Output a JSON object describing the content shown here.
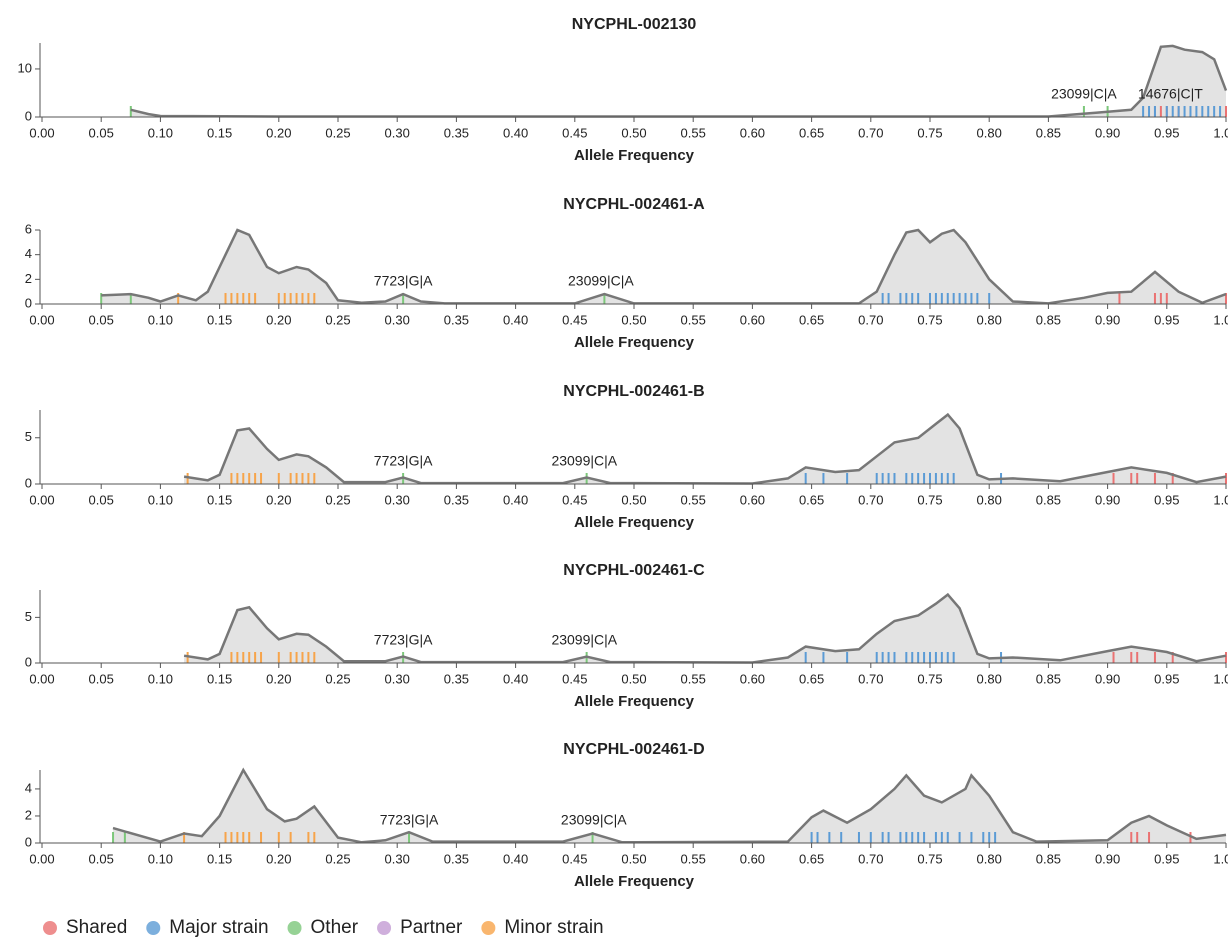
{
  "chart_data": [
    {
      "type": "density",
      "title": "NYCPHL-002130",
      "x_label": "Allele Frequency",
      "xlim": [
        0,
        1
      ],
      "ylim": [
        0,
        15.4
      ],
      "yticks": [
        0,
        10
      ],
      "xticks": [
        {
          "value": 0,
          "label": "0.00"
        },
        {
          "value": 0.05,
          "label": "0.05"
        },
        {
          "value": 0.1,
          "label": "0.10"
        },
        {
          "value": 0.15,
          "label": "0.15"
        },
        {
          "value": 0.2,
          "label": "0.20"
        },
        {
          "value": 0.25,
          "label": "0.25"
        },
        {
          "value": 0.3,
          "label": "0.30"
        },
        {
          "value": 0.35,
          "label": "0.35"
        },
        {
          "value": 0.4,
          "label": "0.40"
        },
        {
          "value": 0.45,
          "label": "0.45"
        },
        {
          "value": 0.5,
          "label": "0.50"
        },
        {
          "value": 0.55,
          "label": "0.55"
        },
        {
          "value": 0.6,
          "label": "0.60"
        },
        {
          "value": 0.65,
          "label": "0.65"
        },
        {
          "value": 0.7,
          "label": "0.70"
        },
        {
          "value": 0.75,
          "label": "0.75"
        },
        {
          "value": 0.8,
          "label": "0.80"
        },
        {
          "value": 0.85,
          "label": "0.85"
        },
        {
          "value": 0.9,
          "label": "0.90"
        },
        {
          "value": 0.95,
          "label": "0.95"
        },
        {
          "value": 1,
          "label": "1.00"
        }
      ],
      "density": {
        "x": [
          0.075,
          0.09,
          0.1,
          0.2,
          0.5,
          0.85,
          0.87,
          0.89,
          0.92,
          0.93,
          0.945,
          0.955,
          0.965,
          0.98,
          0.99,
          1.0
        ],
        "values": [
          1.5,
          0.6,
          0.2,
          0.1,
          0.1,
          0.1,
          0.5,
          0.9,
          1.5,
          4,
          14.6,
          14.8,
          14,
          13.5,
          12,
          5.5
        ]
      },
      "rug": [
        [
          0.94,
          0.945,
          0.95,
          0.96,
          1.0
        ],
        [
          0.93,
          0.935,
          0.94,
          0.95,
          0.955,
          0.96,
          0.965,
          0.97,
          0.975,
          0.98,
          0.985,
          0.99,
          0.995
        ],
        [
          0.075,
          0.88,
          0.9
        ],
        [],
        []
      ],
      "annotations": [
        {
          "label": "23099|C|A",
          "x": 0.88
        },
        {
          "label": "14676|C|T",
          "x": 0.953
        }
      ]
    },
    {
      "type": "density",
      "title": "NYCPHL-002461-A",
      "x_label": "Allele Frequency",
      "xlim": [
        0,
        1
      ],
      "ylim": [
        0,
        6
      ],
      "yticks": [
        0,
        2,
        4,
        6
      ],
      "xticks": [
        {
          "value": 0,
          "label": "0.00"
        },
        {
          "value": 0.05,
          "label": "0.05"
        },
        {
          "value": 0.1,
          "label": "0.10"
        },
        {
          "value": 0.15,
          "label": "0.15"
        },
        {
          "value": 0.2,
          "label": "0.20"
        },
        {
          "value": 0.25,
          "label": "0.25"
        },
        {
          "value": 0.3,
          "label": "0.30"
        },
        {
          "value": 0.35,
          "label": "0.35"
        },
        {
          "value": 0.4,
          "label": "0.40"
        },
        {
          "value": 0.45,
          "label": "0.45"
        },
        {
          "value": 0.5,
          "label": "0.50"
        },
        {
          "value": 0.55,
          "label": "0.55"
        },
        {
          "value": 0.6,
          "label": "0.60"
        },
        {
          "value": 0.65,
          "label": "0.65"
        },
        {
          "value": 0.7,
          "label": "0.70"
        },
        {
          "value": 0.75,
          "label": "0.75"
        },
        {
          "value": 0.8,
          "label": "0.80"
        },
        {
          "value": 0.85,
          "label": "0.85"
        },
        {
          "value": 0.9,
          "label": "0.90"
        },
        {
          "value": 0.95,
          "label": "0.95"
        },
        {
          "value": 1,
          "label": "1.00"
        }
      ],
      "density": {
        "x": [
          0.05,
          0.075,
          0.09,
          0.1,
          0.115,
          0.13,
          0.14,
          0.15,
          0.165,
          0.175,
          0.19,
          0.2,
          0.215,
          0.225,
          0.24,
          0.25,
          0.27,
          0.29,
          0.305,
          0.32,
          0.34,
          0.45,
          0.475,
          0.5,
          0.69,
          0.705,
          0.72,
          0.73,
          0.74,
          0.75,
          0.76,
          0.77,
          0.78,
          0.8,
          0.82,
          0.85,
          0.88,
          0.9,
          0.92,
          0.94,
          0.96,
          0.98,
          1.0
        ],
        "values": [
          0.7,
          0.8,
          0.5,
          0.2,
          0.7,
          0.3,
          1.0,
          3,
          6,
          5.6,
          3,
          2.5,
          3,
          2.8,
          1.7,
          0.3,
          0.1,
          0.2,
          0.8,
          0.2,
          0.05,
          0.05,
          0.8,
          0.05,
          0.05,
          1,
          4,
          5.8,
          6,
          5,
          5.7,
          6,
          5,
          2,
          0.2,
          0.05,
          0.5,
          0.9,
          1,
          2.6,
          1,
          0.1,
          0.8
        ]
      },
      "rug": [
        [
          0.91,
          0.94,
          0.945,
          0.95,
          1.0
        ],
        [
          0.71,
          0.715,
          0.725,
          0.73,
          0.735,
          0.74,
          0.75,
          0.755,
          0.76,
          0.765,
          0.77,
          0.775,
          0.78,
          0.785,
          0.79,
          0.8
        ],
        [
          0.05,
          0.075,
          0.305,
          0.475
        ],
        [],
        [
          0.115,
          0.155,
          0.16,
          0.165,
          0.17,
          0.175,
          0.18,
          0.2,
          0.205,
          0.21,
          0.215,
          0.22,
          0.225,
          0.23
        ]
      ],
      "annotations": [
        {
          "label": "7723|G|A",
          "x": 0.305
        },
        {
          "label": "23099|C|A",
          "x": 0.472
        }
      ]
    },
    {
      "type": "density",
      "title": "NYCPHL-002461-B",
      "x_label": "Allele Frequency",
      "xlim": [
        0,
        1
      ],
      "ylim": [
        0,
        8
      ],
      "yticks": [
        0,
        5
      ],
      "xticks": [
        {
          "value": 0,
          "label": "0.00"
        },
        {
          "value": 0.05,
          "label": "0.05"
        },
        {
          "value": 0.1,
          "label": "0.10"
        },
        {
          "value": 0.15,
          "label": "0.15"
        },
        {
          "value": 0.2,
          "label": "0.20"
        },
        {
          "value": 0.25,
          "label": "0.25"
        },
        {
          "value": 0.3,
          "label": "0.30"
        },
        {
          "value": 0.35,
          "label": "0.35"
        },
        {
          "value": 0.4,
          "label": "0.40"
        },
        {
          "value": 0.45,
          "label": "0.45"
        },
        {
          "value": 0.5,
          "label": "0.50"
        },
        {
          "value": 0.55,
          "label": "0.55"
        },
        {
          "value": 0.6,
          "label": "0.60"
        },
        {
          "value": 0.65,
          "label": "0.65"
        },
        {
          "value": 0.7,
          "label": "0.70"
        },
        {
          "value": 0.75,
          "label": "0.75"
        },
        {
          "value": 0.8,
          "label": "0.80"
        },
        {
          "value": 0.85,
          "label": "0.85"
        },
        {
          "value": 0.9,
          "label": "0.90"
        },
        {
          "value": 0.95,
          "label": "0.95"
        },
        {
          "value": 1,
          "label": "1.00"
        }
      ],
      "density": {
        "x": [
          0.12,
          0.14,
          0.15,
          0.165,
          0.175,
          0.19,
          0.2,
          0.215,
          0.225,
          0.24,
          0.255,
          0.29,
          0.305,
          0.32,
          0.44,
          0.46,
          0.48,
          0.6,
          0.63,
          0.645,
          0.67,
          0.69,
          0.705,
          0.72,
          0.74,
          0.755,
          0.765,
          0.775,
          0.79,
          0.8,
          0.82,
          0.86,
          0.9,
          0.92,
          0.95,
          0.975,
          1.0
        ],
        "values": [
          0.8,
          0.4,
          1,
          5.8,
          6,
          3.8,
          2.6,
          3.2,
          3,
          1.8,
          0.2,
          0.2,
          0.7,
          0.1,
          0.1,
          0.7,
          0.1,
          0.05,
          0.6,
          1.8,
          1.3,
          1.5,
          3,
          4.5,
          5,
          6.5,
          7.5,
          6,
          1,
          0.5,
          0.6,
          0.3,
          1.3,
          1.8,
          1.2,
          0.2,
          0.8
        ]
      },
      "rug": [
        [
          0.905,
          0.92,
          0.925,
          0.94,
          0.955,
          1.0
        ],
        [
          0.645,
          0.66,
          0.68,
          0.705,
          0.71,
          0.715,
          0.72,
          0.73,
          0.735,
          0.74,
          0.745,
          0.75,
          0.755,
          0.76,
          0.765,
          0.77,
          0.81
        ],
        [
          0.305,
          0.46
        ],
        [],
        [
          0.123,
          0.16,
          0.165,
          0.17,
          0.175,
          0.18,
          0.185,
          0.2,
          0.21,
          0.215,
          0.22,
          0.225,
          0.23
        ]
      ],
      "annotations": [
        {
          "label": "7723|G|A",
          "x": 0.305
        },
        {
          "label": "23099|C|A",
          "x": 0.458
        }
      ]
    },
    {
      "type": "density",
      "title": "NYCPHL-002461-C",
      "x_label": "Allele Frequency",
      "xlim": [
        0,
        1
      ],
      "ylim": [
        0,
        8
      ],
      "yticks": [
        0,
        5
      ],
      "xticks": [
        {
          "value": 0,
          "label": "0.00"
        },
        {
          "value": 0.05,
          "label": "0.05"
        },
        {
          "value": 0.1,
          "label": "0.10"
        },
        {
          "value": 0.15,
          "label": "0.15"
        },
        {
          "value": 0.2,
          "label": "0.20"
        },
        {
          "value": 0.25,
          "label": "0.25"
        },
        {
          "value": 0.3,
          "label": "0.30"
        },
        {
          "value": 0.35,
          "label": "0.35"
        },
        {
          "value": 0.4,
          "label": "0.40"
        },
        {
          "value": 0.45,
          "label": "0.45"
        },
        {
          "value": 0.5,
          "label": "0.50"
        },
        {
          "value": 0.55,
          "label": "0.55"
        },
        {
          "value": 0.6,
          "label": "0.60"
        },
        {
          "value": 0.65,
          "label": "0.65"
        },
        {
          "value": 0.7,
          "label": "0.70"
        },
        {
          "value": 0.75,
          "label": "0.75"
        },
        {
          "value": 0.8,
          "label": "0.80"
        },
        {
          "value": 0.85,
          "label": "0.85"
        },
        {
          "value": 0.9,
          "label": "0.90"
        },
        {
          "value": 0.95,
          "label": "0.95"
        },
        {
          "value": 1,
          "label": "1.00"
        }
      ],
      "density": {
        "x": [
          0.12,
          0.14,
          0.15,
          0.165,
          0.175,
          0.19,
          0.2,
          0.215,
          0.225,
          0.24,
          0.255,
          0.29,
          0.305,
          0.32,
          0.44,
          0.46,
          0.48,
          0.6,
          0.63,
          0.645,
          0.67,
          0.69,
          0.705,
          0.72,
          0.74,
          0.755,
          0.765,
          0.775,
          0.79,
          0.8,
          0.82,
          0.86,
          0.9,
          0.92,
          0.95,
          0.975,
          1.0
        ],
        "values": [
          0.8,
          0.4,
          1,
          5.8,
          6.1,
          3.8,
          2.6,
          3.2,
          3.1,
          1.8,
          0.2,
          0.2,
          0.7,
          0.1,
          0.1,
          0.7,
          0.1,
          0.05,
          0.6,
          1.8,
          1.3,
          1.5,
          3.2,
          4.6,
          5.2,
          6.5,
          7.5,
          6,
          1,
          0.5,
          0.6,
          0.3,
          1.3,
          1.8,
          1.2,
          0.2,
          0.8
        ]
      },
      "rug": [
        [
          0.905,
          0.92,
          0.925,
          0.94,
          0.955,
          1.0
        ],
        [
          0.645,
          0.66,
          0.68,
          0.705,
          0.71,
          0.715,
          0.72,
          0.73,
          0.735,
          0.74,
          0.745,
          0.75,
          0.755,
          0.76,
          0.765,
          0.77,
          0.81
        ],
        [
          0.305,
          0.46
        ],
        [],
        [
          0.123,
          0.16,
          0.165,
          0.17,
          0.175,
          0.18,
          0.185,
          0.2,
          0.21,
          0.215,
          0.22,
          0.225,
          0.23
        ]
      ],
      "annotations": [
        {
          "label": "7723|G|A",
          "x": 0.305
        },
        {
          "label": "23099|C|A",
          "x": 0.458
        }
      ]
    },
    {
      "type": "density",
      "title": "NYCPHL-002461-D",
      "x_label": "Allele Frequency",
      "xlim": [
        0,
        1
      ],
      "ylim": [
        0,
        5.4
      ],
      "yticks": [
        0,
        2,
        4
      ],
      "xticks": [
        {
          "value": 0,
          "label": "0.00"
        },
        {
          "value": 0.05,
          "label": "0.05"
        },
        {
          "value": 0.1,
          "label": "0.10"
        },
        {
          "value": 0.15,
          "label": "0.15"
        },
        {
          "value": 0.2,
          "label": "0.20"
        },
        {
          "value": 0.25,
          "label": "0.25"
        },
        {
          "value": 0.3,
          "label": "0.30"
        },
        {
          "value": 0.35,
          "label": "0.35"
        },
        {
          "value": 0.4,
          "label": "0.40"
        },
        {
          "value": 0.45,
          "label": "0.45"
        },
        {
          "value": 0.5,
          "label": "0.50"
        },
        {
          "value": 0.55,
          "label": "0.55"
        },
        {
          "value": 0.6,
          "label": "0.60"
        },
        {
          "value": 0.65,
          "label": "0.65"
        },
        {
          "value": 0.7,
          "label": "0.70"
        },
        {
          "value": 0.75,
          "label": "0.75"
        },
        {
          "value": 0.8,
          "label": "0.80"
        },
        {
          "value": 0.85,
          "label": "0.85"
        },
        {
          "value": 0.9,
          "label": "0.90"
        },
        {
          "value": 0.95,
          "label": "0.95"
        },
        {
          "value": 1,
          "label": "1.00"
        }
      ],
      "density": {
        "x": [
          0.06,
          0.1,
          0.12,
          0.135,
          0.15,
          0.17,
          0.19,
          0.205,
          0.215,
          0.23,
          0.25,
          0.27,
          0.29,
          0.31,
          0.33,
          0.44,
          0.465,
          0.49,
          0.63,
          0.65,
          0.66,
          0.68,
          0.7,
          0.72,
          0.73,
          0.745,
          0.76,
          0.78,
          0.785,
          0.8,
          0.82,
          0.84,
          0.9,
          0.92,
          0.935,
          0.95,
          0.975,
          1.0
        ],
        "values": [
          1.1,
          0.1,
          0.7,
          0.5,
          2,
          5.4,
          2.5,
          1.6,
          1.8,
          2.7,
          0.4,
          0.05,
          0.2,
          0.8,
          0.1,
          0.1,
          0.7,
          0.05,
          0.1,
          1.9,
          2.4,
          1.5,
          2.5,
          4,
          5,
          3.5,
          3,
          4,
          5,
          3.5,
          0.8,
          0.1,
          0.2,
          1.5,
          2,
          1.3,
          0.3,
          0.6
        ]
      },
      "rug": [
        [
          0.92,
          0.925,
          0.935,
          0.97
        ],
        [
          0.65,
          0.655,
          0.665,
          0.675,
          0.69,
          0.7,
          0.71,
          0.715,
          0.725,
          0.73,
          0.735,
          0.74,
          0.745,
          0.755,
          0.76,
          0.765,
          0.775,
          0.785,
          0.795,
          0.8,
          0.805
        ],
        [
          0.06,
          0.07,
          0.31,
          0.465
        ],
        [],
        [
          0.12,
          0.155,
          0.16,
          0.165,
          0.17,
          0.175,
          0.185,
          0.2,
          0.21,
          0.225,
          0.23
        ]
      ],
      "annotations": [
        {
          "label": "7723|G|A",
          "x": 0.31
        },
        {
          "label": "23099|C|A",
          "x": 0.466
        }
      ]
    }
  ],
  "legend": {
    "items": [
      {
        "name": "Shared",
        "color": "#ea7272"
      },
      {
        "name": "Major strain",
        "color": "#5b9bd5"
      },
      {
        "name": "Other",
        "color": "#7cc77a"
      },
      {
        "name": "Partner",
        "color": "#c39bd3"
      },
      {
        "name": "Minor strain",
        "color": "#f7a44a"
      }
    ]
  }
}
